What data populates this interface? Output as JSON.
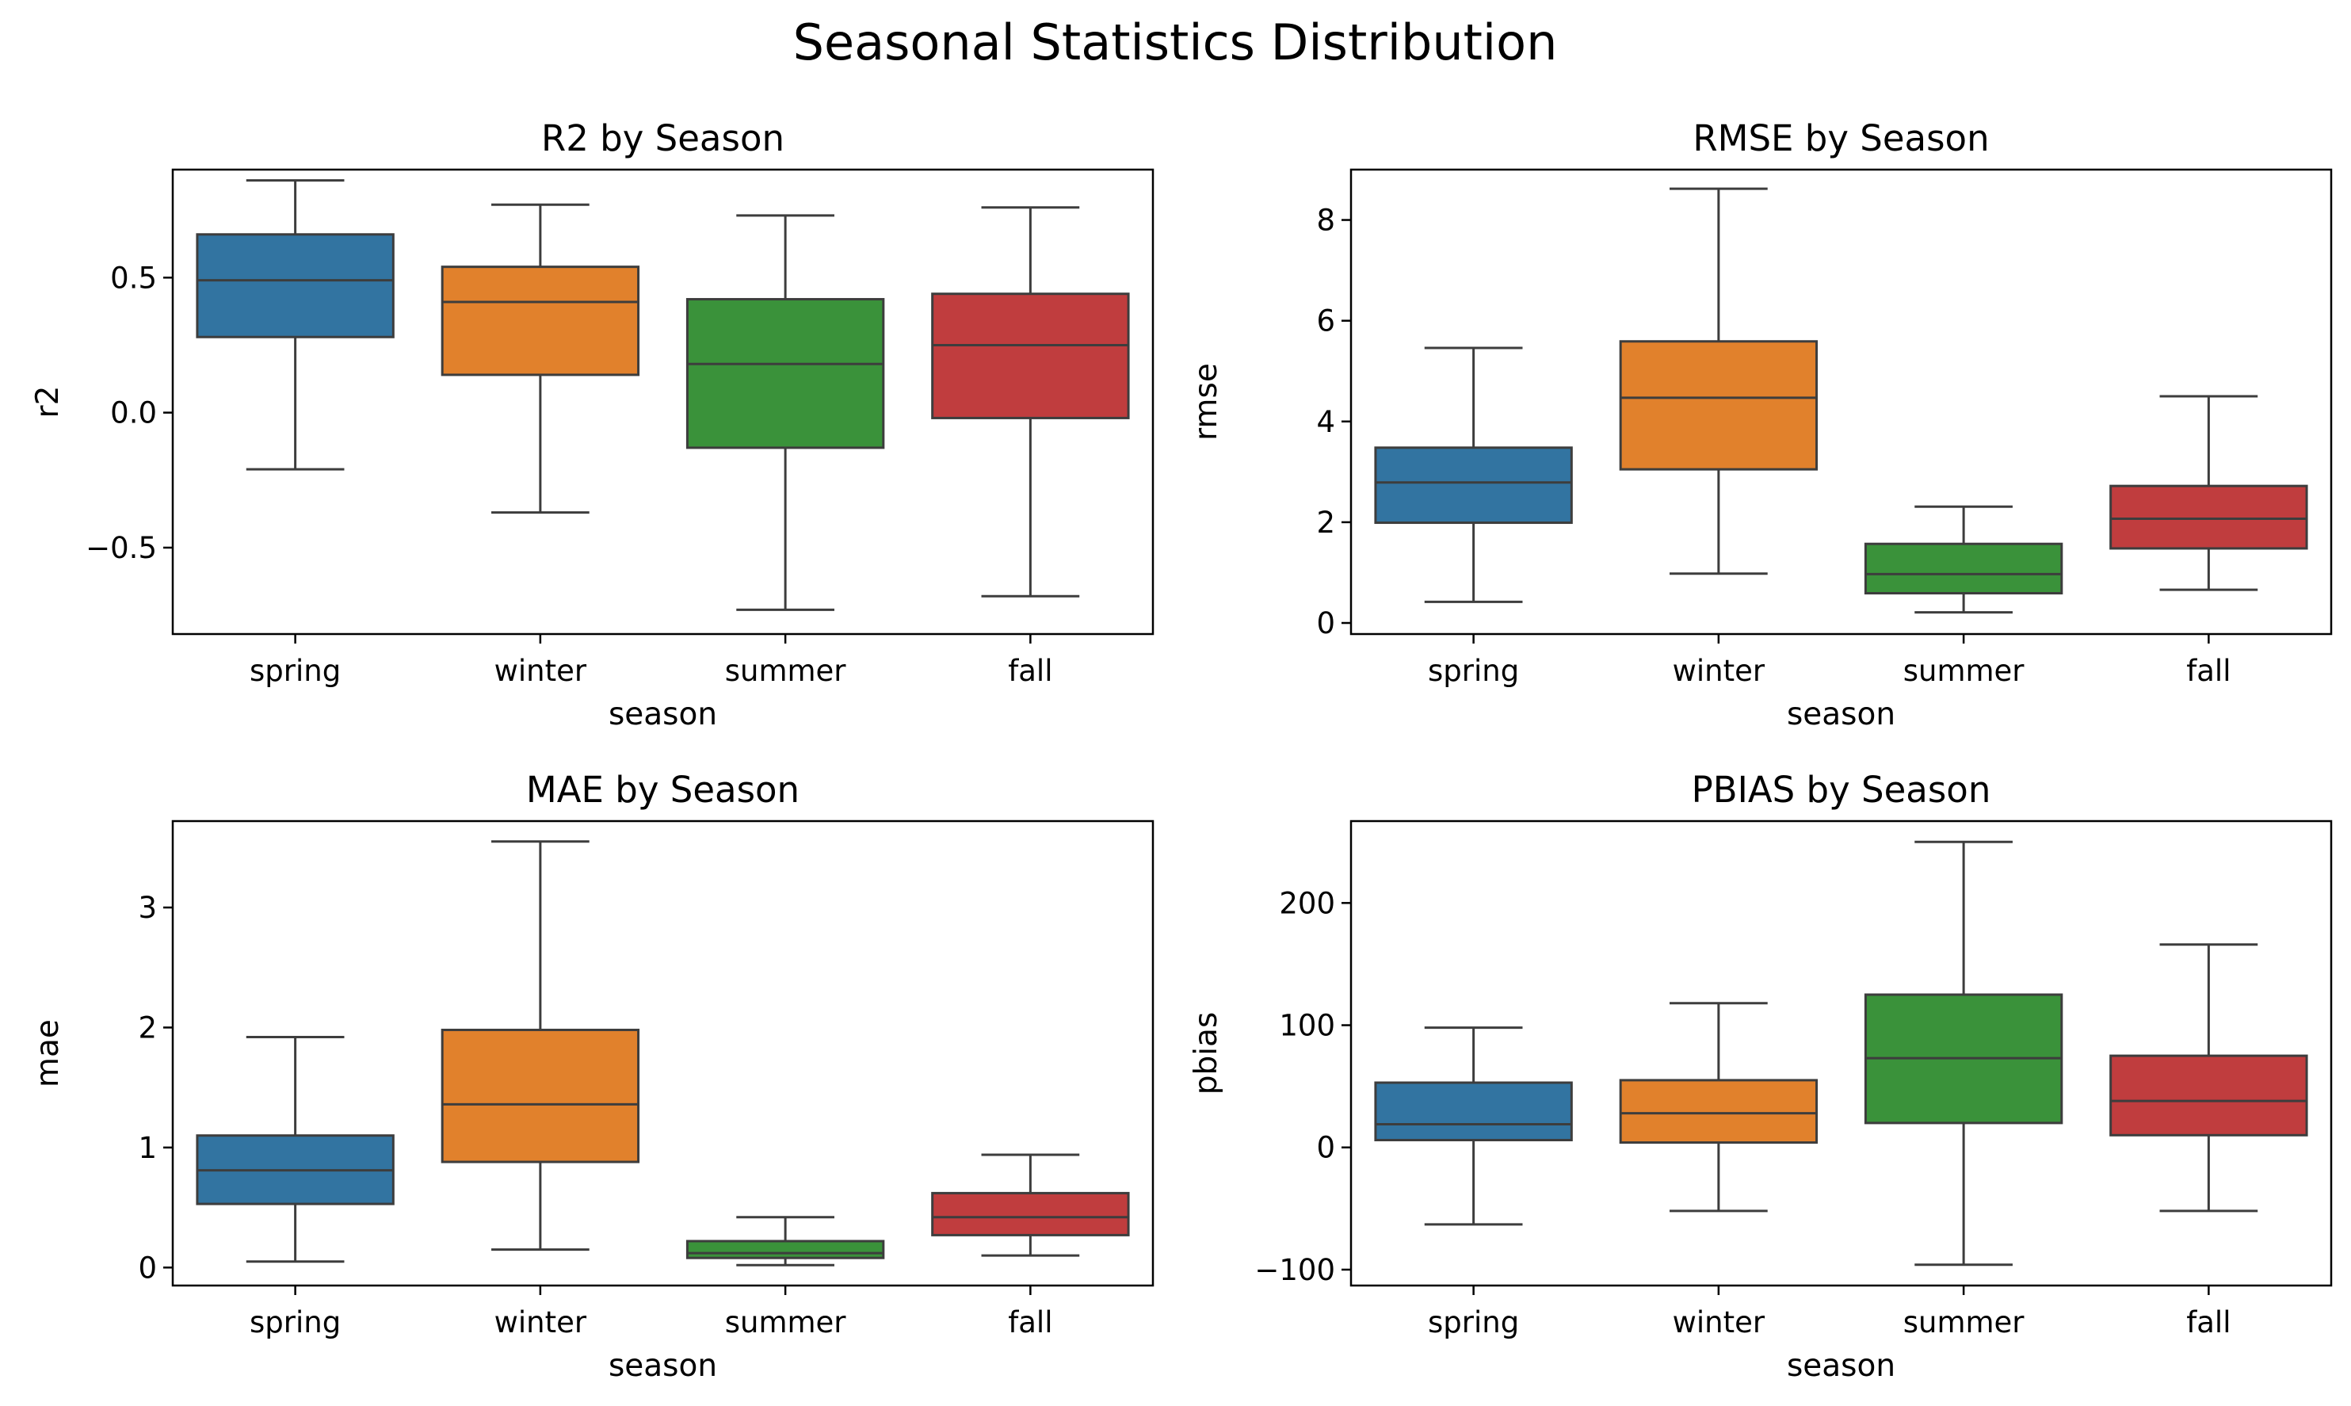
{
  "figure": {
    "title": "Seasonal Statistics Distribution"
  },
  "chart_data": [
    {
      "type": "box",
      "title": "R2 by Season",
      "xlabel": "season",
      "ylabel": "r2",
      "categories": [
        "spring",
        "winter",
        "summer",
        "fall"
      ],
      "ylim": [
        -0.82,
        0.9
      ],
      "yticks": [
        -0.5,
        0.0,
        0.5
      ],
      "ytick_labels": [
        "−0.5",
        "0.0",
        "0.5"
      ],
      "boxes": [
        {
          "whisker_low": -0.21,
          "q1": 0.28,
          "median": 0.49,
          "q3": 0.66,
          "whisker_high": 0.86
        },
        {
          "whisker_low": -0.37,
          "q1": 0.14,
          "median": 0.41,
          "q3": 0.54,
          "whisker_high": 0.77
        },
        {
          "whisker_low": -0.73,
          "q1": -0.13,
          "median": 0.18,
          "q3": 0.42,
          "whisker_high": 0.73
        },
        {
          "whisker_low": -0.68,
          "q1": -0.02,
          "median": 0.25,
          "q3": 0.44,
          "whisker_high": 0.76
        }
      ],
      "colors": [
        "#3274a1",
        "#e1812c",
        "#3a923a",
        "#c03d3e"
      ]
    },
    {
      "type": "box",
      "title": "RMSE by Season",
      "xlabel": "season",
      "ylabel": "rmse",
      "categories": [
        "spring",
        "winter",
        "summer",
        "fall"
      ],
      "ylim": [
        -0.22,
        9.0
      ],
      "yticks": [
        0,
        2,
        4,
        6,
        8
      ],
      "ytick_labels": [
        "0",
        "2",
        "4",
        "6",
        "8"
      ],
      "boxes": [
        {
          "whisker_low": 0.42,
          "q1": 1.99,
          "median": 2.79,
          "q3": 3.48,
          "whisker_high": 5.46
        },
        {
          "whisker_low": 0.98,
          "q1": 3.05,
          "median": 4.47,
          "q3": 5.59,
          "whisker_high": 8.62
        },
        {
          "whisker_low": 0.21,
          "q1": 0.59,
          "median": 0.97,
          "q3": 1.57,
          "whisker_high": 2.31
        },
        {
          "whisker_low": 0.66,
          "q1": 1.48,
          "median": 2.07,
          "q3": 2.72,
          "whisker_high": 4.5
        }
      ],
      "colors": [
        "#3274a1",
        "#e1812c",
        "#3a923a",
        "#c03d3e"
      ]
    },
    {
      "type": "box",
      "title": "MAE by Season",
      "xlabel": "season",
      "ylabel": "mae",
      "categories": [
        "spring",
        "winter",
        "summer",
        "fall"
      ],
      "ylim": [
        -0.15,
        3.72
      ],
      "yticks": [
        0,
        1,
        2,
        3
      ],
      "ytick_labels": [
        "0",
        "1",
        "2",
        "3"
      ],
      "boxes": [
        {
          "whisker_low": 0.05,
          "q1": 0.53,
          "median": 0.81,
          "q3": 1.1,
          "whisker_high": 1.92
        },
        {
          "whisker_low": 0.15,
          "q1": 0.88,
          "median": 1.36,
          "q3": 1.98,
          "whisker_high": 3.55
        },
        {
          "whisker_low": 0.02,
          "q1": 0.08,
          "median": 0.12,
          "q3": 0.22,
          "whisker_high": 0.42
        },
        {
          "whisker_low": 0.1,
          "q1": 0.27,
          "median": 0.42,
          "q3": 0.62,
          "whisker_high": 0.94
        }
      ],
      "colors": [
        "#3274a1",
        "#e1812c",
        "#3a923a",
        "#c03d3e"
      ]
    },
    {
      "type": "box",
      "title": "PBIAS by Season",
      "xlabel": "season",
      "ylabel": "pbias",
      "categories": [
        "spring",
        "winter",
        "summer",
        "fall"
      ],
      "ylim": [
        -113,
        267
      ],
      "yticks": [
        -100,
        0,
        100,
        200
      ],
      "ytick_labels": [
        "−100",
        "0",
        "100",
        "200"
      ],
      "boxes": [
        {
          "whisker_low": -63,
          "q1": 6,
          "median": 19,
          "q3": 53,
          "whisker_high": 98
        },
        {
          "whisker_low": -52,
          "q1": 4,
          "median": 28,
          "q3": 55,
          "whisker_high": 118
        },
        {
          "whisker_low": -96,
          "q1": 20,
          "median": 73,
          "q3": 125,
          "whisker_high": 250
        },
        {
          "whisker_low": -52,
          "q1": 10,
          "median": 38,
          "q3": 75,
          "whisker_high": 166
        }
      ],
      "colors": [
        "#3274a1",
        "#e1812c",
        "#3a923a",
        "#c03d3e"
      ]
    }
  ]
}
